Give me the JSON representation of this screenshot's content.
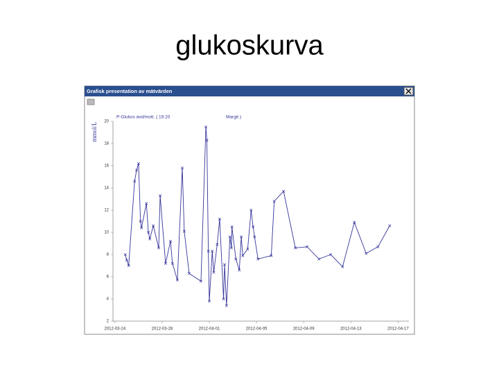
{
  "slide_title": "glukoskurva",
  "window_title": "Grafisk presentation av mätvärden",
  "chart_data": {
    "type": "line",
    "y_label": "mmol/L",
    "series": [
      {
        "name": "P-Glukos avd/mott. ( 19.20",
        "owner": "Margit )",
        "color": "#333399",
        "x": [
          "2012-03-24T21:00",
          "2012-03-25T00:00",
          "2012-03-25T04:00",
          "2012-03-25T16:00",
          "2012-03-25T20:00",
          "2012-03-26T00:00",
          "2012-03-26T04:00",
          "2012-03-26T06:00",
          "2012-03-26T16:00",
          "2012-03-26T20:00",
          "2012-03-26T23:00",
          "2012-03-27T06:00",
          "2012-03-27T17:00",
          "2012-03-27T20:00",
          "2012-03-28T07:00",
          "2012-03-28T17:00",
          "2012-03-28T21:00",
          "2012-03-29T07:00",
          "2012-03-29T17:00",
          "2012-03-29T21:00",
          "2012-03-30T07:00",
          "2012-03-31T07:00",
          "2012-03-31T17:00",
          "2012-03-31T19:00",
          "2012-03-31T22:00",
          "2012-04-01T00:00",
          "2012-04-01T06:00",
          "2012-04-01T09:00",
          "2012-04-01T16:00",
          "2012-04-01T21:00",
          "2012-04-02T05:00",
          "2012-04-02T07:00",
          "2012-04-02T11:00",
          "2012-04-02T18:00",
          "2012-04-02T21:00",
          "2012-04-02T22:00",
          "2012-04-03T06:00",
          "2012-04-03T13:00",
          "2012-04-03T17:00",
          "2012-04-03T20:00",
          "2012-04-04T06:00",
          "2012-04-04T13:00",
          "2012-04-04T17:00",
          "2012-04-04T20:00",
          "2012-04-05T03:00",
          "2012-04-06T06:00",
          "2012-04-06T12:00",
          "2012-04-07T07:00",
          "2012-04-08T07:00",
          "2012-04-09T07:00",
          "2012-04-10T07:00",
          "2012-04-11T07:00",
          "2012-04-12T07:00",
          "2012-04-13T07:00",
          "2012-04-14T07:00",
          "2012-04-15T07:00",
          "2012-04-16T07:00"
        ],
        "values": [
          8.0,
          7.5,
          7.0,
          14.6,
          15.6,
          16.2,
          11.0,
          10.4,
          12.6,
          10.0,
          9.4,
          10.6,
          8.6,
          13.3,
          7.2,
          9.2,
          7.2,
          5.7,
          15.8,
          10.1,
          6.3,
          5.6,
          19.5,
          18.3,
          8.3,
          3.8,
          8.3,
          6.4,
          8.9,
          11.2,
          4.0,
          7.1,
          3.4,
          9.6,
          8.6,
          10.5,
          7.6,
          6.6,
          9.6,
          7.9,
          8.5,
          12.0,
          10.5,
          9.6,
          7.6,
          7.9,
          12.8,
          13.7,
          8.6,
          8.7,
          7.6,
          8.0,
          6.9,
          10.9,
          8.1,
          8.7,
          10.6
        ]
      }
    ],
    "xlim": [
      "2012-03-23T20:00",
      "2012-04-17T22:00"
    ],
    "xticks": [
      "2012-03-24",
      "2012-03-28",
      "2012-04-01",
      "2012-04-05",
      "2012-04-09",
      "2012-04-13",
      "2012-04-17"
    ],
    "ylim": [
      2,
      20
    ],
    "yticks": [
      2,
      4,
      6,
      8,
      10,
      12,
      14,
      16,
      18,
      20
    ],
    "grid": false
  }
}
